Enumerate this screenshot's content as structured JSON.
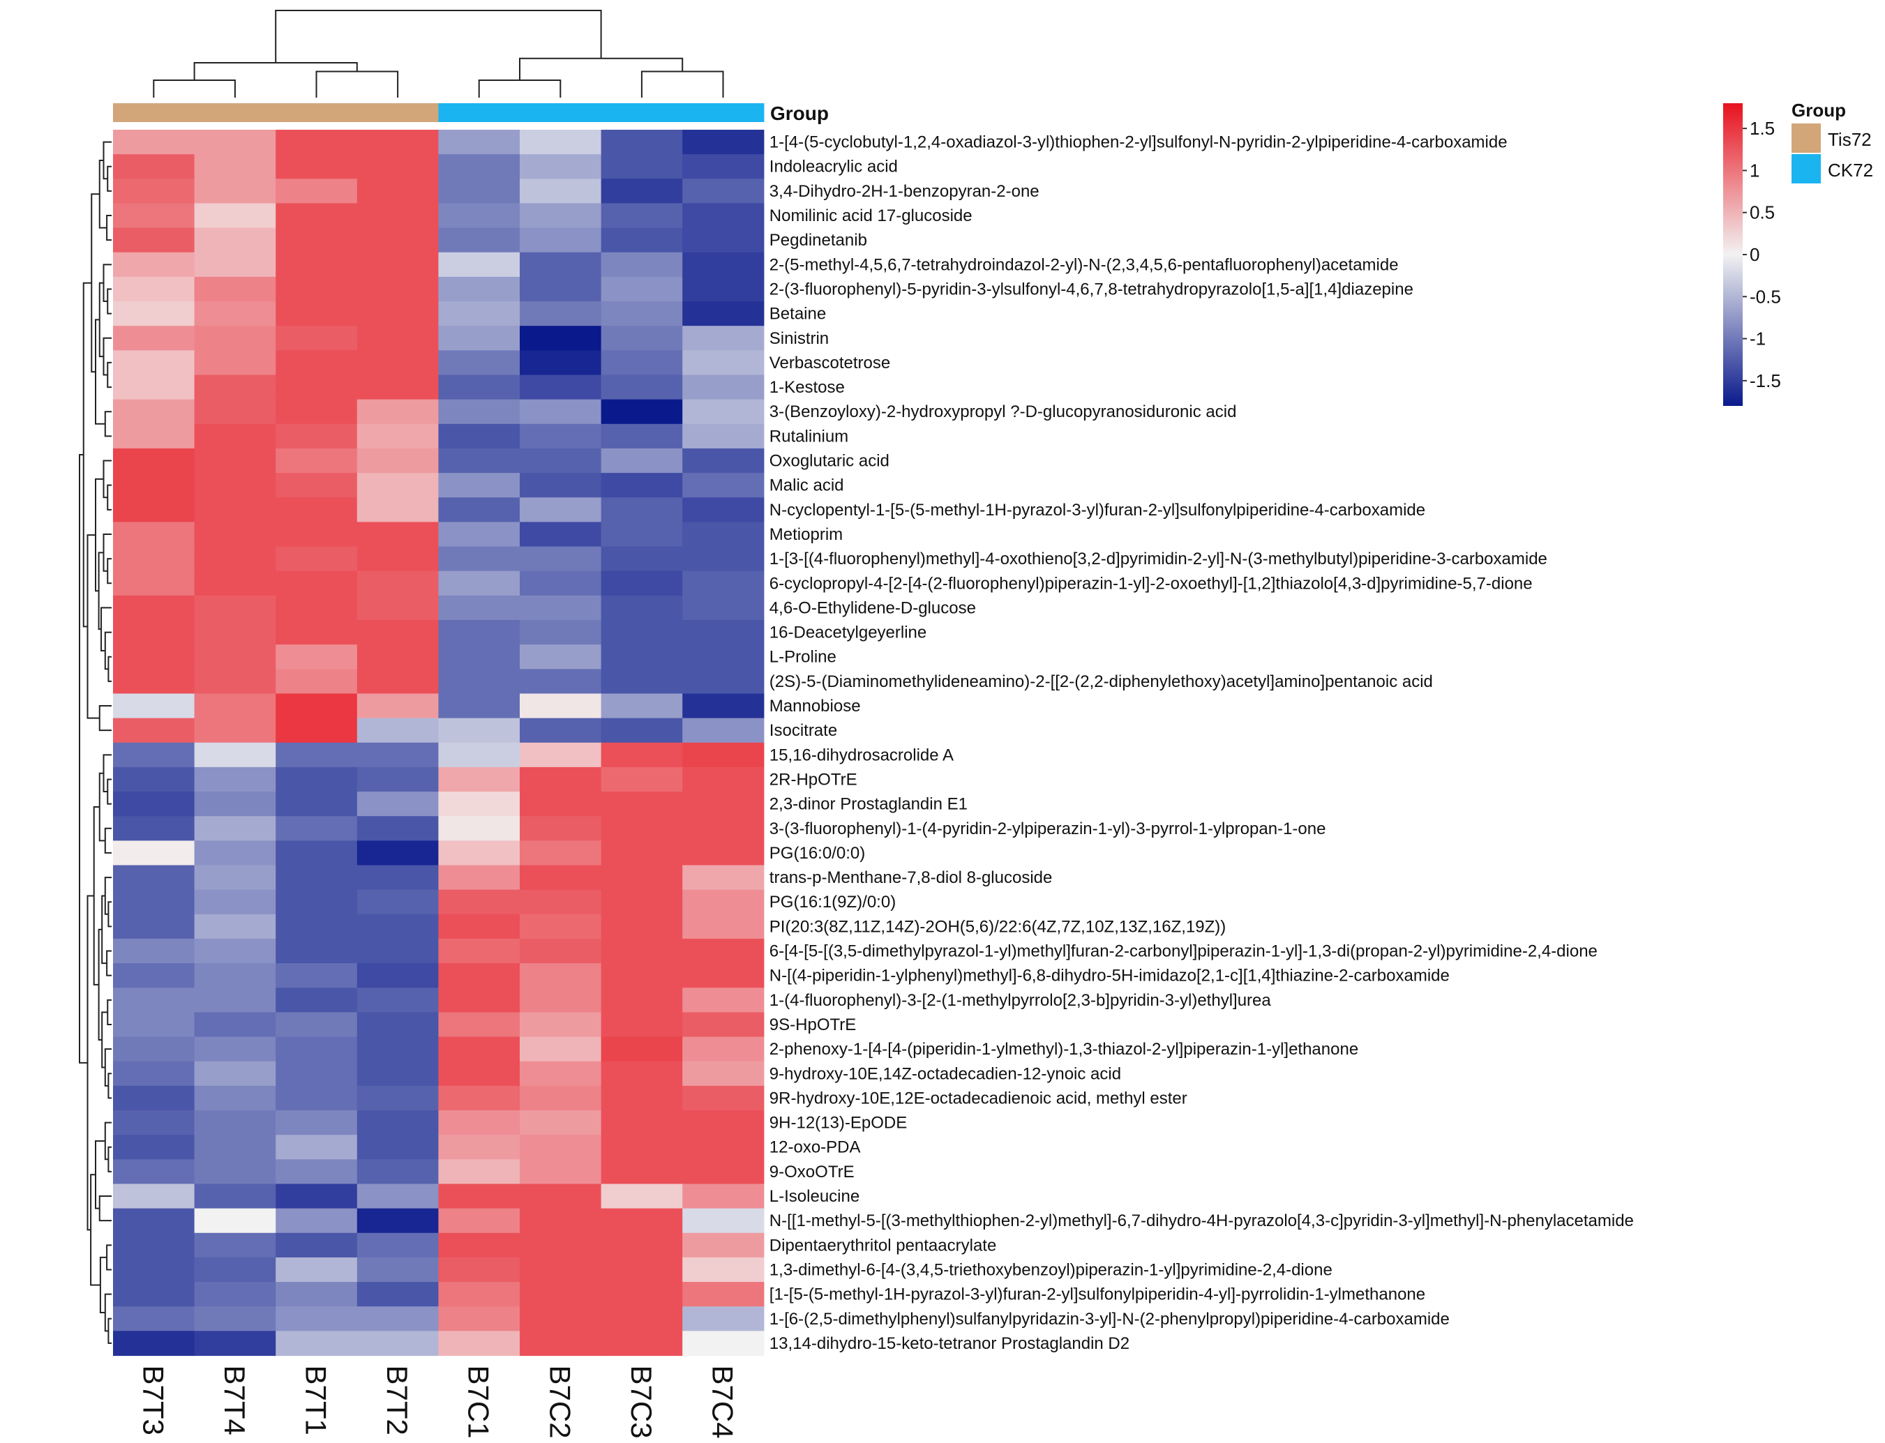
{
  "chart_data": {
    "type": "heatmap",
    "title": "",
    "columns": [
      "B7T3",
      "B7T4",
      "B7T1",
      "B7T2",
      "B7C1",
      "B7C2",
      "B7C3",
      "B7C4"
    ],
    "column_groups": [
      "Tis72",
      "Tis72",
      "Tis72",
      "Tis72",
      "CK72",
      "CK72",
      "CK72",
      "CK72"
    ],
    "annotation_label": "Group",
    "legend": {
      "title": "Group",
      "entries": [
        {
          "label": "Tis72",
          "color": "#d2a679"
        },
        {
          "label": "CK72",
          "color": "#1ab4f0"
        }
      ]
    },
    "colorbar": {
      "range": [
        -1.8,
        1.8
      ],
      "ticks": [
        1.5,
        1,
        0.5,
        0,
        -0.5,
        -1,
        -1.5
      ],
      "tick_labels": [
        "1.5",
        "1",
        "0.5",
        "0",
        "-0.5",
        "-1",
        "-1.5"
      ],
      "low_color": "#0a1a8c",
      "mid_color": "#f2f2f2",
      "high_color": "#e8121e"
    },
    "rows": [
      "1-[4-(5-cyclobutyl-1,2,4-oxadiazol-3-yl)thiophen-2-yl]sulfonyl-N-pyridin-2-ylpiperidine-4-carboxamide",
      "Indoleacrylic acid",
      "3,4-Dihydro-2H-1-benzopyran-2-one",
      "Nomilinic acid 17-glucoside",
      "Pegdinetanib",
      "2-(5-methyl-4,5,6,7-tetrahydroindazol-2-yl)-N-(2,3,4,5,6-pentafluorophenyl)acetamide",
      "2-(3-fluorophenyl)-5-pyridin-3-ylsulfonyl-4,6,7,8-tetrahydropyrazolo[1,5-a][1,4]diazepine",
      "Betaine",
      "Sinistrin",
      "Verbascotetrose",
      "1-Kestose",
      "3-(Benzoyloxy)-2-hydroxypropyl ?-D-glucopyranosiduronic acid",
      "Rutalinium",
      "Oxoglutaric acid",
      "Malic acid",
      "N-cyclopentyl-1-[5-(5-methyl-1H-pyrazol-3-yl)furan-2-yl]sulfonylpiperidine-4-carboxamide",
      "Metioprim",
      "1-[3-[(4-fluorophenyl)methyl]-4-oxothieno[3,2-d]pyrimidin-2-yl]-N-(3-methylbutyl)piperidine-3-carboxamide",
      "6-cyclopropyl-4-[2-[4-(2-fluorophenyl)piperazin-1-yl]-2-oxoethyl]-[1,2]thiazolo[4,3-d]pyrimidine-5,7-dione",
      "4,6-O-Ethylidene-D-glucose",
      "16-Deacetylgeyerline",
      "L-Proline",
      "(2S)-5-(Diaminomethylideneamino)-2-[[2-(2,2-diphenylethoxy)acetyl]amino]pentanoic acid",
      "Mannobiose",
      "Isocitrate",
      "15,16-dihydrosacrolide A",
      "2R-HpOTrE",
      "2,3-dinor Prostaglandin E1",
      "3-(3-fluorophenyl)-1-(4-pyridin-2-ylpiperazin-1-yl)-3-pyrrol-1-ylpropan-1-one",
      "PG(16:0/0:0)",
      "trans-p-Menthane-7,8-diol 8-glucoside",
      "PG(16:1(9Z)/0:0)",
      "PI(20:3(8Z,11Z,14Z)-2OH(5,6)/22:6(4Z,7Z,10Z,13Z,16Z,19Z))",
      "6-[4-[5-[(3,5-dimethylpyrazol-1-yl)methyl]furan-2-carbonyl]piperazin-1-yl]-1,3-di(propan-2-yl)pyrimidine-2,4-dione",
      "N-[(4-piperidin-1-ylphenyl)methyl]-6,8-dihydro-5H-imidazo[2,1-c][1,4]thiazine-2-carboxamide",
      "1-(4-fluorophenyl)-3-[2-(1-methylpyrrolo[2,3-b]pyridin-3-yl)ethyl]urea",
      "9S-HpOTrE",
      "2-phenoxy-1-[4-[4-(piperidin-1-ylmethyl)-1,3-thiazol-2-yl]piperazin-1-yl]ethanone",
      "9-hydroxy-10E,14Z-octadecadien-12-ynoic acid",
      "9R-hydroxy-10E,12E-octadecadienoic acid, methyl ester",
      "9H-12(13)-EpODE",
      "12-oxo-PDA",
      "9-OxoOTrE",
      "L-Isoleucine",
      "N-[[1-methyl-5-[(3-methylthiophen-2-yl)methyl]-6,7-dihydro-4H-pyrazolo[4,3-c]pyridin-3-yl]methyl]-N-phenylacetamide",
      "Dipentaerythritol pentaacrylate",
      "1,3-dimethyl-6-[4-(3,4,5-triethoxybenzoyl)piperazin-1-yl]pyrimidine-2,4-dione",
      "[1-[5-(5-methyl-1H-pyrazol-3-yl)furan-2-yl]sulfonylpiperidin-4-yl]-pyrrolidin-1-ylmethanone",
      "1-[6-(2,5-dimethylphenyl)sulfanylpyridazin-3-yl]-N-(2-phenylpropyl)piperidine-4-carboxamide",
      "13,14-dihydro-15-keto-tetranor Prostaglandin D2"
    ],
    "values": [
      [
        0.7,
        0.7,
        1.3,
        1.3,
        -0.7,
        -0.3,
        -1.3,
        -1.6
      ],
      [
        1.2,
        0.7,
        1.3,
        1.3,
        -1.0,
        -0.6,
        -1.3,
        -1.4
      ],
      [
        1.1,
        0.7,
        0.9,
        1.3,
        -1.0,
        -0.4,
        -1.5,
        -1.2
      ],
      [
        1.0,
        0.3,
        1.3,
        1.3,
        -0.9,
        -0.7,
        -1.2,
        -1.4
      ],
      [
        1.2,
        0.5,
        1.3,
        1.3,
        -1.0,
        -0.8,
        -1.3,
        -1.4
      ],
      [
        0.6,
        0.5,
        1.3,
        1.3,
        -0.3,
        -1.2,
        -0.9,
        -1.5
      ],
      [
        0.4,
        0.9,
        1.3,
        1.3,
        -0.7,
        -1.2,
        -0.8,
        -1.5
      ],
      [
        0.3,
        0.8,
        1.3,
        1.3,
        -0.6,
        -1.0,
        -0.9,
        -1.6
      ],
      [
        0.8,
        0.9,
        1.2,
        1.3,
        -0.7,
        -1.8,
        -1.0,
        -0.6
      ],
      [
        0.4,
        0.9,
        1.3,
        1.3,
        -1.0,
        -1.7,
        -1.1,
        -0.5
      ],
      [
        0.4,
        1.2,
        1.3,
        1.3,
        -1.2,
        -1.4,
        -1.2,
        -0.7
      ],
      [
        0.7,
        1.2,
        1.3,
        0.7,
        -0.9,
        -0.8,
        -1.8,
        -0.5
      ],
      [
        0.7,
        1.3,
        1.2,
        0.6,
        -1.3,
        -1.1,
        -1.2,
        -0.6
      ],
      [
        1.4,
        1.3,
        1.0,
        0.7,
        -1.2,
        -1.2,
        -0.8,
        -1.3
      ],
      [
        1.4,
        1.3,
        1.2,
        0.5,
        -0.8,
        -1.3,
        -1.4,
        -1.1
      ],
      [
        1.4,
        1.3,
        1.3,
        0.5,
        -1.2,
        -0.7,
        -1.2,
        -1.4
      ],
      [
        1.0,
        1.3,
        1.3,
        1.3,
        -0.8,
        -1.4,
        -1.2,
        -1.3
      ],
      [
        1.0,
        1.3,
        1.2,
        1.3,
        -1.0,
        -1.0,
        -1.3,
        -1.3
      ],
      [
        1.0,
        1.3,
        1.3,
        1.2,
        -0.7,
        -1.1,
        -1.4,
        -1.2
      ],
      [
        1.3,
        1.2,
        1.3,
        1.2,
        -0.9,
        -0.9,
        -1.3,
        -1.2
      ],
      [
        1.3,
        1.2,
        1.3,
        1.3,
        -1.1,
        -1.0,
        -1.3,
        -1.3
      ],
      [
        1.3,
        1.2,
        0.8,
        1.3,
        -1.1,
        -0.7,
        -1.3,
        -1.3
      ],
      [
        1.3,
        1.2,
        0.9,
        1.3,
        -1.1,
        -1.1,
        -1.3,
        -1.3
      ],
      [
        -0.2,
        1.0,
        1.5,
        0.7,
        -1.1,
        0.1,
        -0.7,
        -1.6
      ],
      [
        1.2,
        1.0,
        1.5,
        -0.5,
        -0.4,
        -1.2,
        -1.3,
        -0.8
      ],
      [
        -1.1,
        -0.2,
        -1.1,
        -1.1,
        -0.3,
        0.4,
        1.3,
        1.4
      ],
      [
        -1.3,
        -0.8,
        -1.3,
        -1.2,
        0.6,
        1.3,
        1.1,
        1.3
      ],
      [
        -1.4,
        -0.9,
        -1.3,
        -0.8,
        0.2,
        1.3,
        1.3,
        1.3
      ],
      [
        -1.3,
        -0.6,
        -1.1,
        -1.3,
        0.1,
        1.2,
        1.3,
        1.3
      ],
      [
        0.05,
        -0.8,
        -1.3,
        -1.7,
        0.4,
        1.0,
        1.3,
        1.3
      ],
      [
        -1.2,
        -0.7,
        -1.3,
        -1.3,
        0.8,
        1.3,
        1.3,
        0.6
      ],
      [
        -1.2,
        -0.8,
        -1.3,
        -1.2,
        1.2,
        1.2,
        1.3,
        0.8
      ],
      [
        -1.2,
        -0.6,
        -1.3,
        -1.3,
        1.3,
        1.1,
        1.3,
        0.8
      ],
      [
        -0.9,
        -0.8,
        -1.3,
        -1.3,
        1.1,
        1.2,
        1.3,
        1.3
      ],
      [
        -1.1,
        -0.9,
        -1.1,
        -1.4,
        1.3,
        0.9,
        1.3,
        1.3
      ],
      [
        -0.9,
        -0.9,
        -1.3,
        -1.2,
        1.3,
        0.9,
        1.3,
        0.8
      ],
      [
        -0.9,
        -1.1,
        -1.0,
        -1.3,
        1.0,
        0.7,
        1.3,
        1.2
      ],
      [
        -1.0,
        -0.9,
        -1.1,
        -1.3,
        1.3,
        0.5,
        1.4,
        0.8
      ],
      [
        -1.1,
        -0.7,
        -1.1,
        -1.3,
        1.3,
        0.8,
        1.3,
        0.7
      ],
      [
        -1.3,
        -0.9,
        -1.1,
        -1.2,
        1.1,
        0.9,
        1.3,
        1.2
      ],
      [
        -1.2,
        -1.0,
        -0.9,
        -1.3,
        0.8,
        0.7,
        1.3,
        1.3
      ],
      [
        -1.3,
        -1.0,
        -0.6,
        -1.3,
        0.7,
        0.8,
        1.3,
        1.3
      ],
      [
        -1.1,
        -1.0,
        -0.9,
        -1.2,
        0.5,
        0.8,
        1.3,
        1.3
      ],
      [
        -0.4,
        -1.2,
        -1.5,
        -0.8,
        1.3,
        1.3,
        0.3,
        0.8
      ],
      [
        -1.3,
        0.0,
        -0.8,
        -1.7,
        0.9,
        1.3,
        1.3,
        -0.2
      ],
      [
        -1.3,
        -1.1,
        -1.3,
        -1.1,
        1.3,
        1.3,
        1.3,
        0.7
      ],
      [
        -1.3,
        -1.2,
        -0.5,
        -1.0,
        1.2,
        1.3,
        1.3,
        0.3
      ],
      [
        -1.3,
        -1.1,
        -0.9,
        -1.3,
        1.0,
        1.3,
        1.3,
        1.0
      ],
      [
        -1.1,
        -1.0,
        -0.8,
        -0.8,
        0.9,
        1.3,
        1.3,
        -0.5
      ],
      [
        -1.6,
        -1.5,
        -0.5,
        -0.5,
        0.5,
        1.3,
        1.3,
        0.0
      ]
    ]
  }
}
